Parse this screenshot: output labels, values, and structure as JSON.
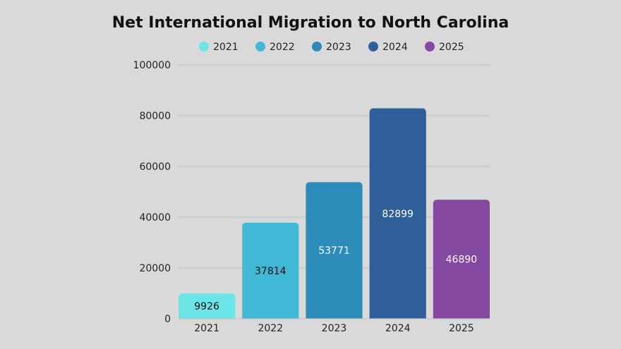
{
  "chart_data": {
    "type": "bar",
    "title": "Net International Migration to North Carolina",
    "categories": [
      "2021",
      "2022",
      "2023",
      "2024",
      "2025"
    ],
    "values": [
      9926,
      37814,
      53771,
      82899,
      46890
    ],
    "colors": [
      "#6ce5e8",
      "#41b8d5",
      "#2d8bba",
      "#2f5f98",
      "#8548a0"
    ],
    "label_colors": [
      "#111111",
      "#111111",
      "#ffffff",
      "#ffffff",
      "#ffffff"
    ],
    "legend": [
      "2021",
      "2022",
      "2023",
      "2024",
      "2025"
    ],
    "legend_placement": "top-center",
    "xlabel": "",
    "ylabel": "",
    "ylim": [
      0,
      100000
    ],
    "yticks": [
      0,
      20000,
      40000,
      60000,
      80000,
      100000
    ],
    "grid": true
  }
}
